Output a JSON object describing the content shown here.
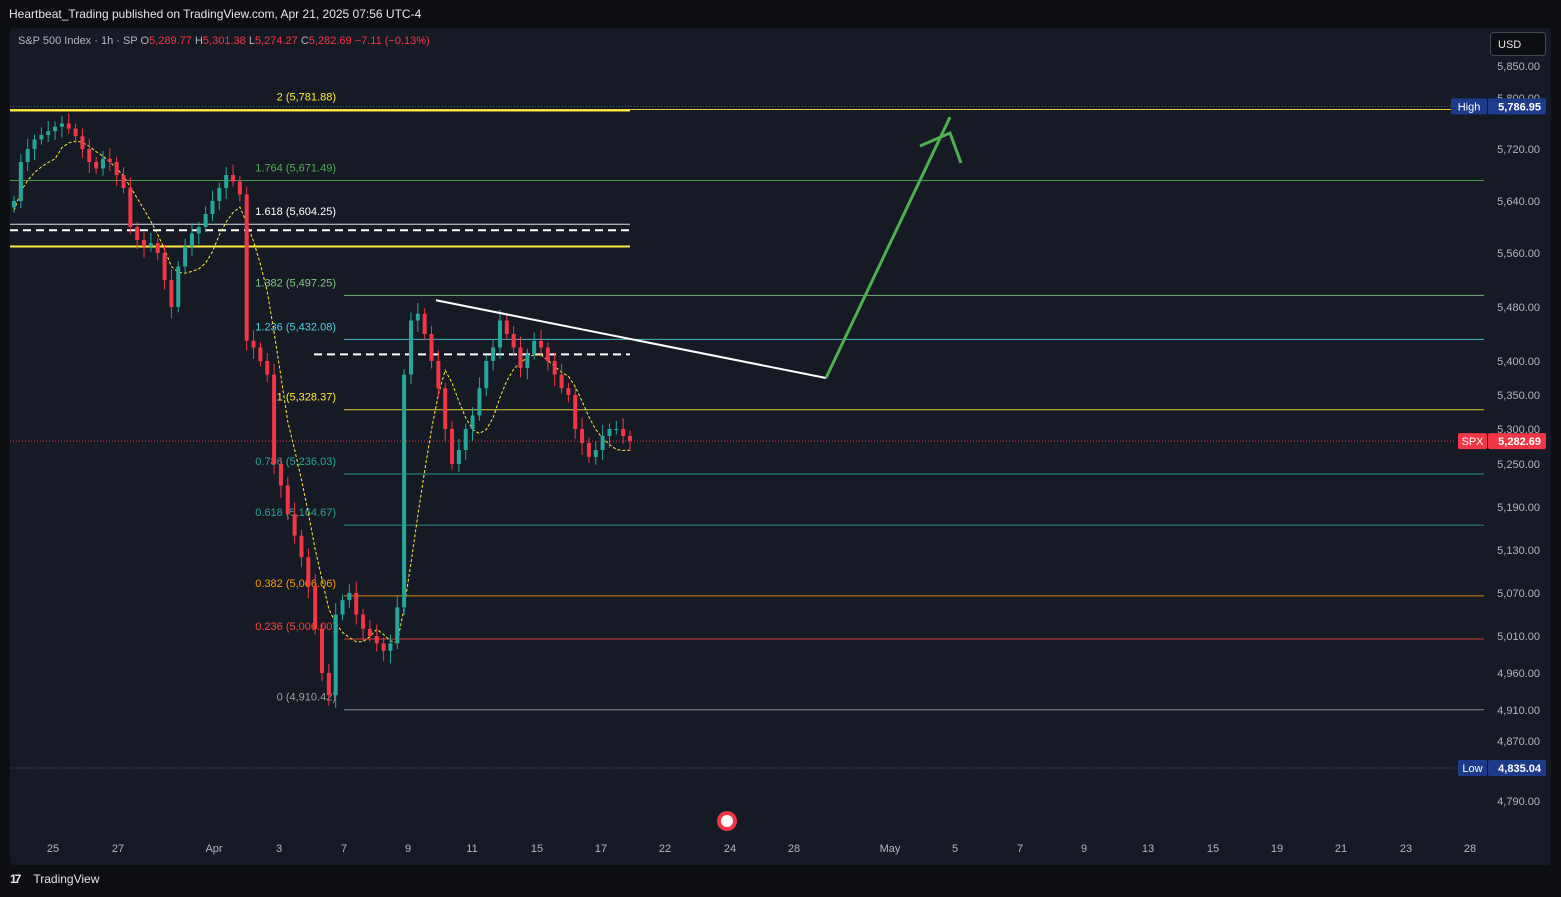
{
  "header": {
    "publisher_line": "Heartbeat_Trading published on TradingView.com, Apr 21, 2025 07:56 UTC-4"
  },
  "legend": {
    "symbol": "S&P 500 Index · 1h · SP",
    "open_label": "O",
    "open": "5,289.77",
    "high_label": "H",
    "high": "5,301.38",
    "low_label": "L",
    "low": "5,274.27",
    "close_label": "C",
    "close": "5,282.69",
    "change": "−7.11 (−0.13%)",
    "down_color": "#f23645"
  },
  "currency_button": "USD",
  "brand": {
    "icon": "tradingview-logo-icon",
    "label": "TradingView"
  },
  "chart_data": {
    "type": "candlestick",
    "symbol": "SPX",
    "interval": "1h",
    "y_axis": {
      "ticks": [
        "5,850.00",
        "5,800.00",
        "5,720.00",
        "5,640.00",
        "5,560.00",
        "5,480.00",
        "5,400.00",
        "5,350.00",
        "5,300.00",
        "5,250.00",
        "5,190.00",
        "5,130.00",
        "5,070.00",
        "5,010.00",
        "4,960.00",
        "4,910.00",
        "4,870.00",
        "4,790.00"
      ],
      "tick_values": [
        5850,
        5800,
        5720,
        5640,
        5560,
        5480,
        5400,
        5350,
        5300,
        5250,
        5190,
        5130,
        5070,
        5010,
        4960,
        4910,
        4870,
        4790
      ]
    },
    "x_axis": {
      "ticks": [
        "25",
        "27",
        "Apr",
        "3",
        "7",
        "9",
        "11",
        "15",
        "17",
        "22",
        "24",
        "28",
        "May",
        "5",
        "7",
        "9",
        "13",
        "15",
        "19",
        "21",
        "23",
        "28"
      ]
    },
    "price_tags": [
      {
        "label": "High",
        "value": "5,786.95",
        "num": 5786.95,
        "color": "#1e3a8a"
      },
      {
        "label": "SPX",
        "value": "5,282.69",
        "num": 5282.69,
        "color": "#f23645"
      },
      {
        "label": "Low",
        "value": "4,835.04",
        "num": 4835.04,
        "color": "#1e3a8a"
      }
    ],
    "fib_levels": [
      {
        "ratio": "2",
        "label": "2 (5,781.88)",
        "price": 5781.88,
        "color": "#ffeb3b"
      },
      {
        "ratio": "1.764",
        "label": "1.764 (5,671.49)",
        "price": 5671.49,
        "color": "#4caf50"
      },
      {
        "ratio": "1.618",
        "label": "1.618 (5,604.25)",
        "price": 5604.25,
        "color": "#ffffff"
      },
      {
        "ratio": "1.382",
        "label": "1.382 (5,497.25)",
        "price": 5497.25,
        "color": "#81c784"
      },
      {
        "ratio": "1.236",
        "label": "1.236 (5,432.08)",
        "price": 5432.08,
        "color": "#4dd0e1"
      },
      {
        "ratio": "1",
        "label": "1 (5,328.37)",
        "price": 5328.37,
        "color": "#ffeb3b"
      },
      {
        "ratio": "0.786",
        "label": "0.786 (5,236.03)",
        "price": 5236.03,
        "color": "#26a69a"
      },
      {
        "ratio": "0.618",
        "label": "0.618 (5,164.67)",
        "price": 5164.67,
        "color": "#26a69a"
      },
      {
        "ratio": "0.382",
        "label": "0.382 (5,066.06)",
        "price": 5066.06,
        "color": "#ff9800"
      },
      {
        "ratio": "0.236",
        "label": "0.236 (5,006.00)",
        "price": 5006.0,
        "color": "#f44336"
      },
      {
        "ratio": "0",
        "label": "0 (4,910.42)",
        "price": 4910.42,
        "color": "#9e9e9e"
      }
    ],
    "colors": {
      "up": "#26a69a",
      "down": "#f23645",
      "ma": "#ffeb3b",
      "trendline": "#ffffff",
      "arrow": "#4caf50"
    },
    "ohlc_close_path": [
      5640,
      5700,
      5720,
      5735,
      5742,
      5748,
      5755,
      5760,
      5752,
      5740,
      5720,
      5700,
      5690,
      5705,
      5700,
      5680,
      5660,
      5600,
      5580,
      5570,
      5575,
      5560,
      5520,
      5480,
      5540,
      5570,
      5590,
      5600,
      5620,
      5640,
      5660,
      5680,
      5670,
      5650,
      5430,
      5420,
      5400,
      5380,
      5250,
      5220,
      5180,
      5150,
      5120,
      5080,
      5020,
      4960,
      4930,
      5040,
      5060,
      5070,
      5040,
      5020,
      5010,
      5000,
      4990,
      5000,
      5050,
      5380,
      5460,
      5470,
      5440,
      5400,
      5360,
      5300,
      5250,
      5270,
      5300,
      5320,
      5360,
      5400,
      5420,
      5460,
      5440,
      5420,
      5390,
      5410,
      5430,
      5420,
      5400,
      5380,
      5360,
      5350,
      5300,
      5280,
      5260,
      5270,
      5290,
      5300,
      5300,
      5290,
      5282.69
    ]
  }
}
